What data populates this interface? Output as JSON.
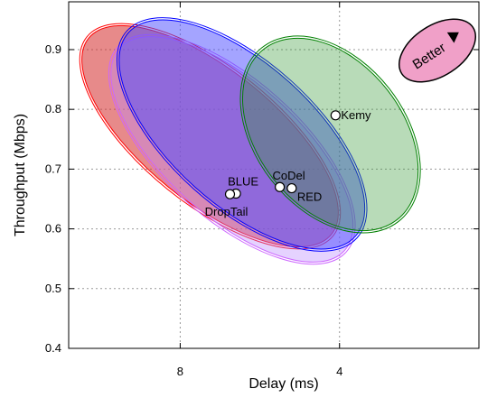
{
  "chart_data": {
    "type": "scatter",
    "title": "",
    "xlabel": "Delay (ms)",
    "ylabel": "Throughput (Mbps)",
    "x_axis": {
      "reversed": true,
      "range": [
        0.5,
        10.8
      ],
      "ticks": [
        8,
        4
      ],
      "tick_labels": [
        "8",
        "4"
      ]
    },
    "y_axis": {
      "range": [
        0.4,
        0.98
      ],
      "ticks": [
        0.4,
        0.5,
        0.6,
        0.7,
        0.8,
        0.9
      ],
      "tick_labels": [
        "0.4",
        "0.5",
        "0.6",
        "0.7",
        "0.8",
        "0.9"
      ]
    },
    "grid": true,
    "badge": "Better",
    "points": [
      {
        "label": "Kemy",
        "x": 4.1,
        "y": 0.79
      },
      {
        "label": "CoDel",
        "x": 5.5,
        "y": 0.67
      },
      {
        "label": "RED",
        "x": 5.2,
        "y": 0.668
      },
      {
        "label": "BLUE",
        "x": 6.6,
        "y": 0.659
      },
      {
        "label": "DropTail",
        "x": 6.75,
        "y": 0.658
      }
    ],
    "ellipses": [
      {
        "series": "DropTail",
        "cx": 7.25,
        "cy": 0.755,
        "rx": 3.92,
        "ry": 0.11,
        "color": "#ff0000",
        "fill": "#d42a2a",
        "fill_opacity": 0.55,
        "rotate": 39
      },
      {
        "series": "BLUE",
        "cx": 6.7,
        "cy": 0.733,
        "rx": 3.8,
        "ry": 0.112,
        "color": "#cc66ff",
        "fill": "#bb88ff",
        "fill_opacity": 0.38,
        "rotate": 42
      },
      {
        "series": "CoDel",
        "cx": 6.45,
        "cy": 0.758,
        "rx": 3.83,
        "ry": 0.118,
        "color": "#0000ff",
        "fill": "#4a4aff",
        "fill_opacity": 0.5,
        "rotate": 42
      },
      {
        "series": "Kemy",
        "cx": 4.23,
        "cy": 0.758,
        "rx": 2.72,
        "ry": 0.121,
        "color": "#008000",
        "fill": "#339933",
        "fill_opacity": 0.35,
        "rotate": 52
      }
    ],
    "colors": {
      "axis": "#000000",
      "grid": "#999999",
      "point_fill": "#ffffff",
      "badge_fill": "#f0a0c8"
    }
  }
}
